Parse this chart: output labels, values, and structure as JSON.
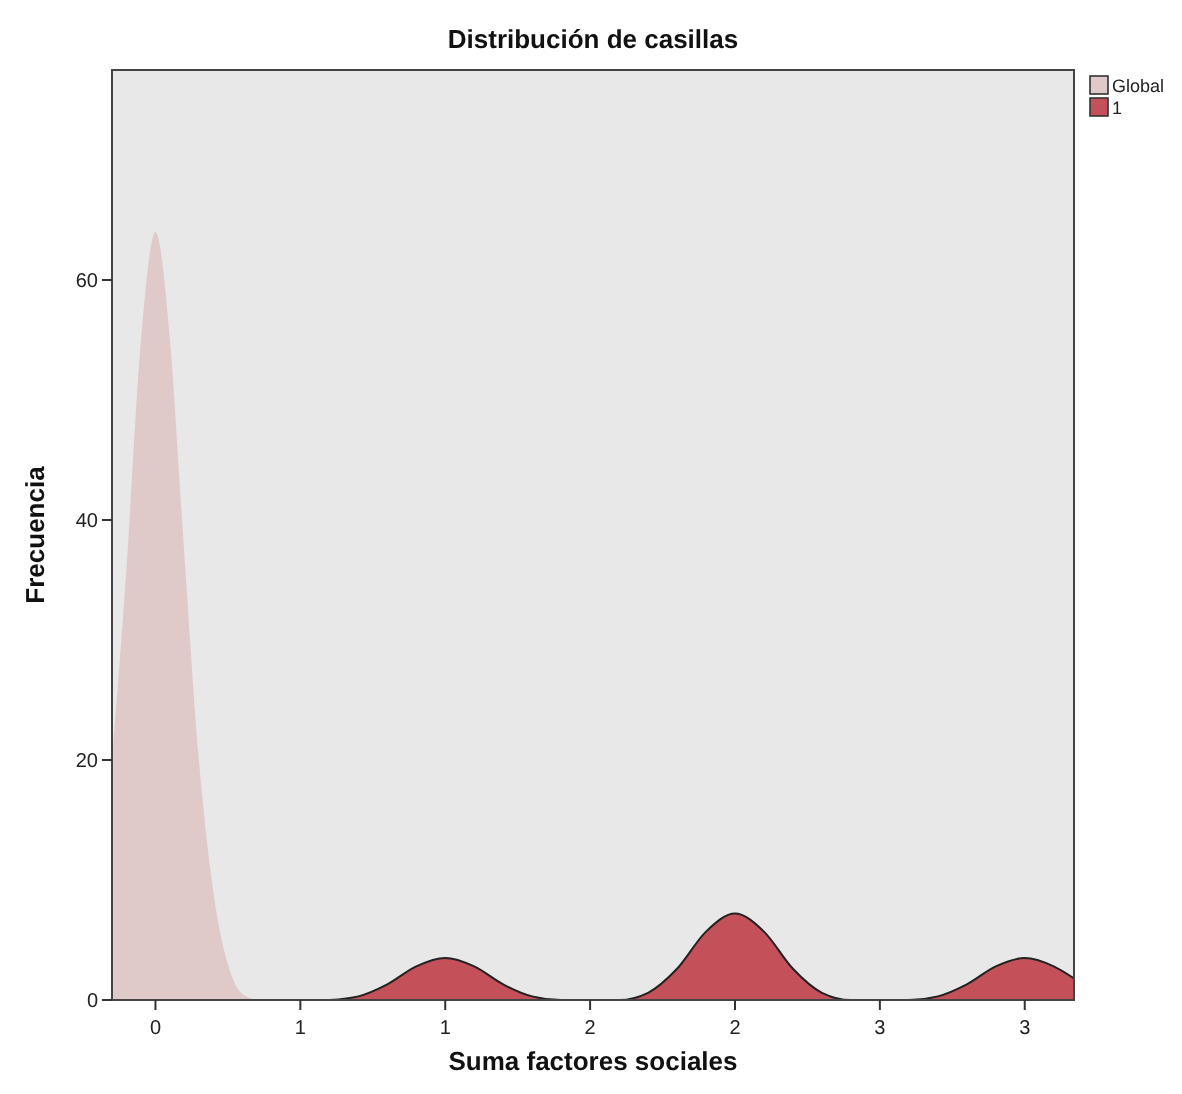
{
  "chart_data": {
    "type": "area",
    "title": "Distribución de casillas",
    "xlabel": "Suma factores sociales",
    "ylabel": "Frecuencia",
    "xlim": [
      -0.15,
      3.17
    ],
    "xticks": [
      0,
      {
        "value": 0.5,
        "label": "1"
      },
      1,
      {
        "value": 1.5,
        "label": "2"
      },
      2,
      {
        "value": 2.5,
        "label": "3"
      },
      3
    ],
    "ylim": [
      0,
      77.5
    ],
    "yticks": [
      0,
      20,
      40,
      60
    ],
    "grid": false,
    "legend": "top right",
    "series": [
      {
        "name": "Global",
        "color": "#e0c9c9",
        "x": [
          -0.15,
          -0.1,
          -0.05,
          0,
          0.05,
          0.1,
          0.15,
          0.2,
          0.25,
          0.3,
          0.35
        ],
        "values": [
          20,
          36,
          55,
          64,
          55,
          37,
          20,
          9,
          3,
          0.5,
          0
        ]
      },
      {
        "name": "1",
        "color": "#c4515a",
        "x": [
          0.6,
          0.7,
          0.8,
          0.9,
          1,
          1.1,
          1.2,
          1.3,
          1.4,
          1.6,
          1.7,
          1.8,
          1.9,
          2,
          2.1,
          2.2,
          2.3,
          2.4,
          2.6,
          2.7,
          2.8,
          2.9,
          3,
          3.1,
          3.17
        ],
        "values": [
          0,
          0.3,
          1.3,
          2.8,
          3.5,
          2.8,
          1.3,
          0.3,
          0,
          0,
          0.6,
          2.6,
          5.7,
          7.2,
          5.7,
          2.6,
          0.6,
          0,
          0,
          0.3,
          1.3,
          2.8,
          3.5,
          2.8,
          1.8
        ]
      }
    ]
  }
}
